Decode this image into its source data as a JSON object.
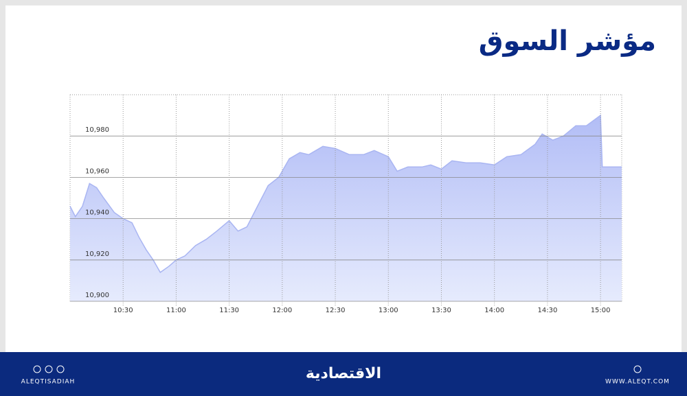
{
  "chart_data": {
    "type": "area",
    "title": "مؤشر السوق",
    "x": [
      "10:00",
      "10:03",
      "10:07",
      "10:11",
      "10:15",
      "10:19",
      "10:25",
      "10:30",
      "10:35",
      "10:39",
      "10:43",
      "10:47",
      "10:51",
      "10:56",
      "11:00",
      "11:05",
      "11:11",
      "11:17",
      "11:23",
      "11:30",
      "11:35",
      "11:40",
      "11:46",
      "11:52",
      "11:58",
      "12:04",
      "12:10",
      "12:15",
      "12:23",
      "12:30",
      "12:38",
      "12:46",
      "12:52",
      "13:00",
      "13:05",
      "13:11",
      "13:19",
      "13:24",
      "13:30",
      "13:36",
      "13:44",
      "13:52",
      "14:00",
      "14:07",
      "14:15",
      "14:23",
      "14:27",
      "14:33",
      "14:39",
      "14:46",
      "14:52",
      "15:00",
      "15:01",
      "15:12"
    ],
    "values": [
      10946,
      10941,
      10946,
      10957,
      10955,
      10950,
      10943,
      10940,
      10938,
      10931,
      10925,
      10920,
      10914,
      10917,
      10920,
      10922,
      10927,
      10930,
      10934,
      10939,
      10934,
      10936,
      10946,
      10956,
      10960,
      10969,
      10972,
      10971,
      10975,
      10974,
      10971,
      10971,
      10973,
      10970,
      10963,
      10965,
      10965,
      10966,
      10964,
      10968,
      10967,
      10967,
      10966,
      10970,
      10971,
      10976,
      10981,
      10978,
      10980,
      10985,
      10985,
      10990,
      10965,
      10965
    ],
    "color": "#a9b5f2",
    "xlim": [
      "10:00",
      "15:12"
    ],
    "xticks": [
      "10:30",
      "11:00",
      "11:30",
      "12:00",
      "12:30",
      "13:00",
      "13:30",
      "14:00",
      "14:30",
      "15:00"
    ],
    "ylim": [
      10900,
      11000
    ],
    "yticks": [
      {
        "value": 10900,
        "label": "10,900"
      },
      {
        "value": 10920,
        "label": "10,920"
      },
      {
        "value": 10940,
        "label": "10,940"
      },
      {
        "value": 10960,
        "label": "10,960"
      },
      {
        "value": 10980,
        "label": "10,980"
      }
    ],
    "grid": true
  },
  "footer": {
    "brand": "الاقتصادية",
    "handle": "ALEQTISADIAH",
    "website": "WWW.ALEQT.COM"
  }
}
